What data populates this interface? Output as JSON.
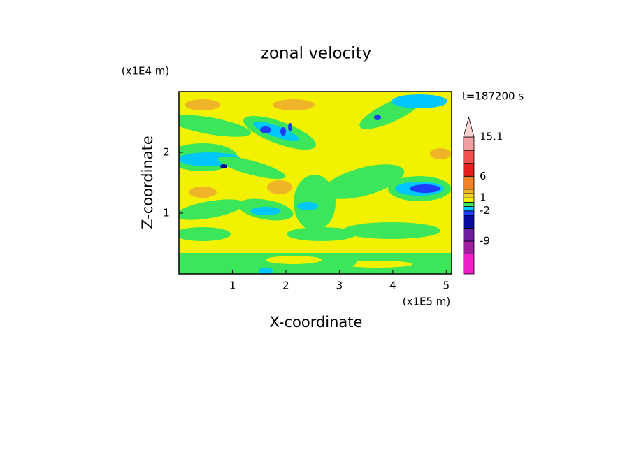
{
  "chart_data": {
    "type": "contour",
    "title": "zonal velocity",
    "x_label": "X-coordinate",
    "y_label": "Z-coordinate",
    "x_unit": "(x1E5 m)",
    "y_unit": "(x1E4 m)",
    "annotation": "t=187200 s",
    "xlim": [
      0,
      5.1
    ],
    "xticks": [
      1,
      2,
      3,
      4,
      5
    ],
    "ylim": [
      0,
      3
    ],
    "yticks": [
      1,
      2
    ],
    "colorbar": {
      "clim": [
        -16.6,
        15.1
      ],
      "levels": [
        -12,
        -9,
        -6,
        -3,
        -2,
        -1,
        0,
        1,
        2,
        3,
        6,
        9,
        12,
        15.1
      ],
      "colors": [
        "#f01ec8",
        "#a01ea0",
        "#6e1ea0",
        "#0a0aa0",
        "#1e3cff",
        "#00c8ff",
        "#3ce65a",
        "#f2f200",
        "#f0d232",
        "#f0b428",
        "#f08228",
        "#e61e1e",
        "#f05050",
        "#f0a0a0",
        "#fad2d2"
      ],
      "ticks": [
        -9,
        -2,
        1,
        6,
        15.1
      ]
    }
  }
}
